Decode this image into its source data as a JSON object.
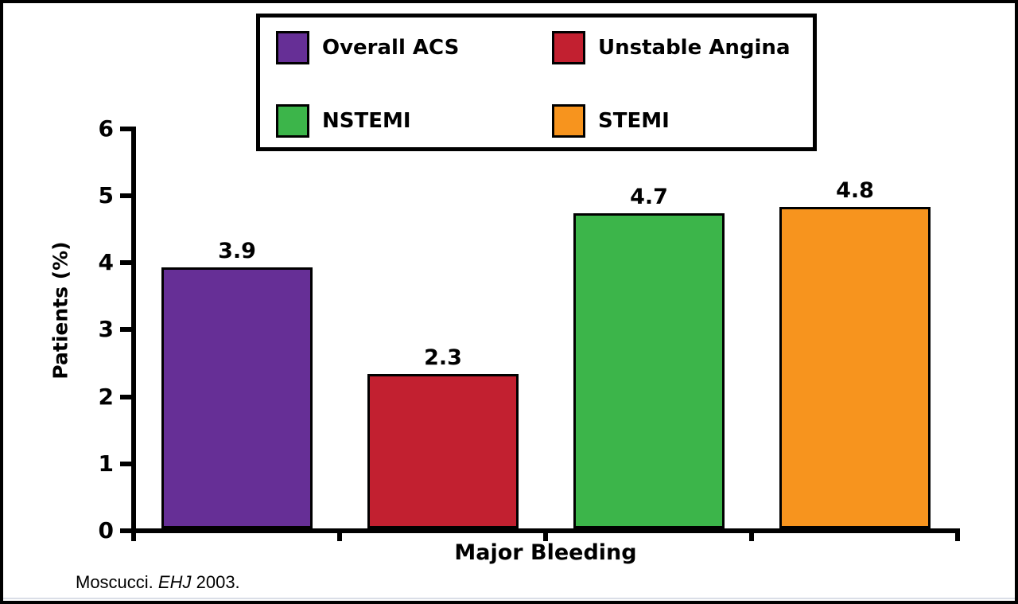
{
  "chart_data": {
    "type": "bar",
    "title": "",
    "categories": [
      "Major Bleeding"
    ],
    "series": [
      {
        "name": "Overall ACS",
        "value": 3.9,
        "color": "#662F96"
      },
      {
        "name": "Unstable Angina",
        "value": 2.3,
        "color": "#C22030"
      },
      {
        "name": "NSTEMI",
        "value": 4.7,
        "color": "#3CB54A"
      },
      {
        "name": "STEMI",
        "value": 4.8,
        "color": "#F7941E"
      }
    ],
    "value_labels": [
      "3.9",
      "2.3",
      "4.7",
      "4.8"
    ],
    "xlabel": "Major Bleeding",
    "ylabel": "Patients (%)",
    "ylim": [
      0,
      6
    ],
    "yticks": [
      "0",
      "1",
      "2",
      "3",
      "4",
      "5",
      "6"
    ],
    "grid": false,
    "legend_position": "top",
    "axis_color": "#000000",
    "bar_border_color": "#000000"
  },
  "footer": {
    "citation_author": "Moscucci.",
    "citation_journal": "EHJ",
    "citation_year": "2003."
  }
}
